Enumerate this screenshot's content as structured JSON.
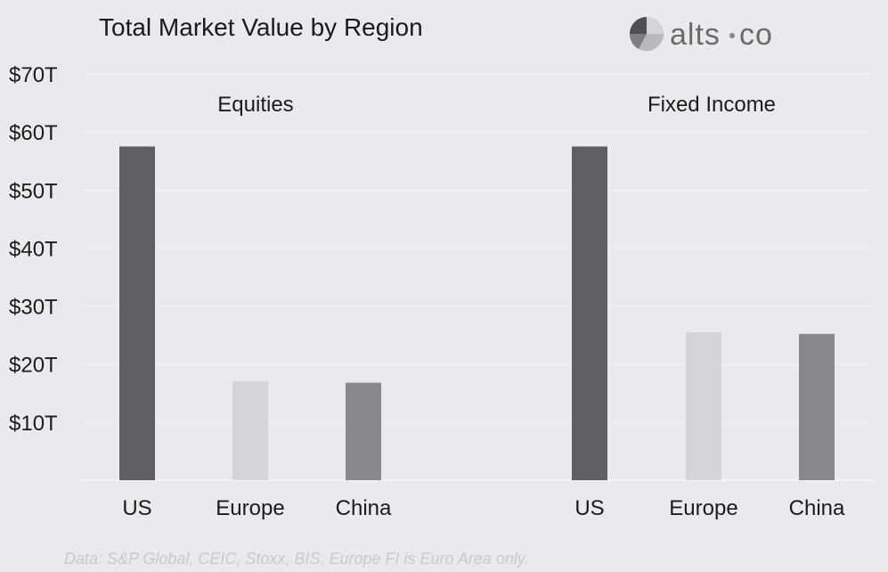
{
  "title": "Total Market Value by Region",
  "logo": {
    "text_left": "alts",
    "text_right": "co"
  },
  "source_note": "Data: S&P Global, CEIC, Stoxx, BIS. Europe FI is Euro Area only.",
  "colors": {
    "US": "#5f6063",
    "Europe": "#d4d5da",
    "China": "#87888d",
    "background": "#e9eaed"
  },
  "chart_data": {
    "type": "bar",
    "ylim": [
      0,
      70
    ],
    "yticks": [
      10,
      20,
      30,
      40,
      50,
      60,
      70
    ],
    "ytick_labels": [
      "$10T",
      "$20T",
      "$30T",
      "$40T",
      "$50T",
      "$60T",
      "$70T"
    ],
    "grid": true,
    "panels": [
      {
        "name": "Equities",
        "categories": [
          "US",
          "Europe",
          "China"
        ],
        "values": [
          57.5,
          17,
          16.8
        ]
      },
      {
        "name": "Fixed Income",
        "categories": [
          "US",
          "Europe",
          "China"
        ],
        "values": [
          57.5,
          25.5,
          25.2
        ]
      }
    ]
  }
}
